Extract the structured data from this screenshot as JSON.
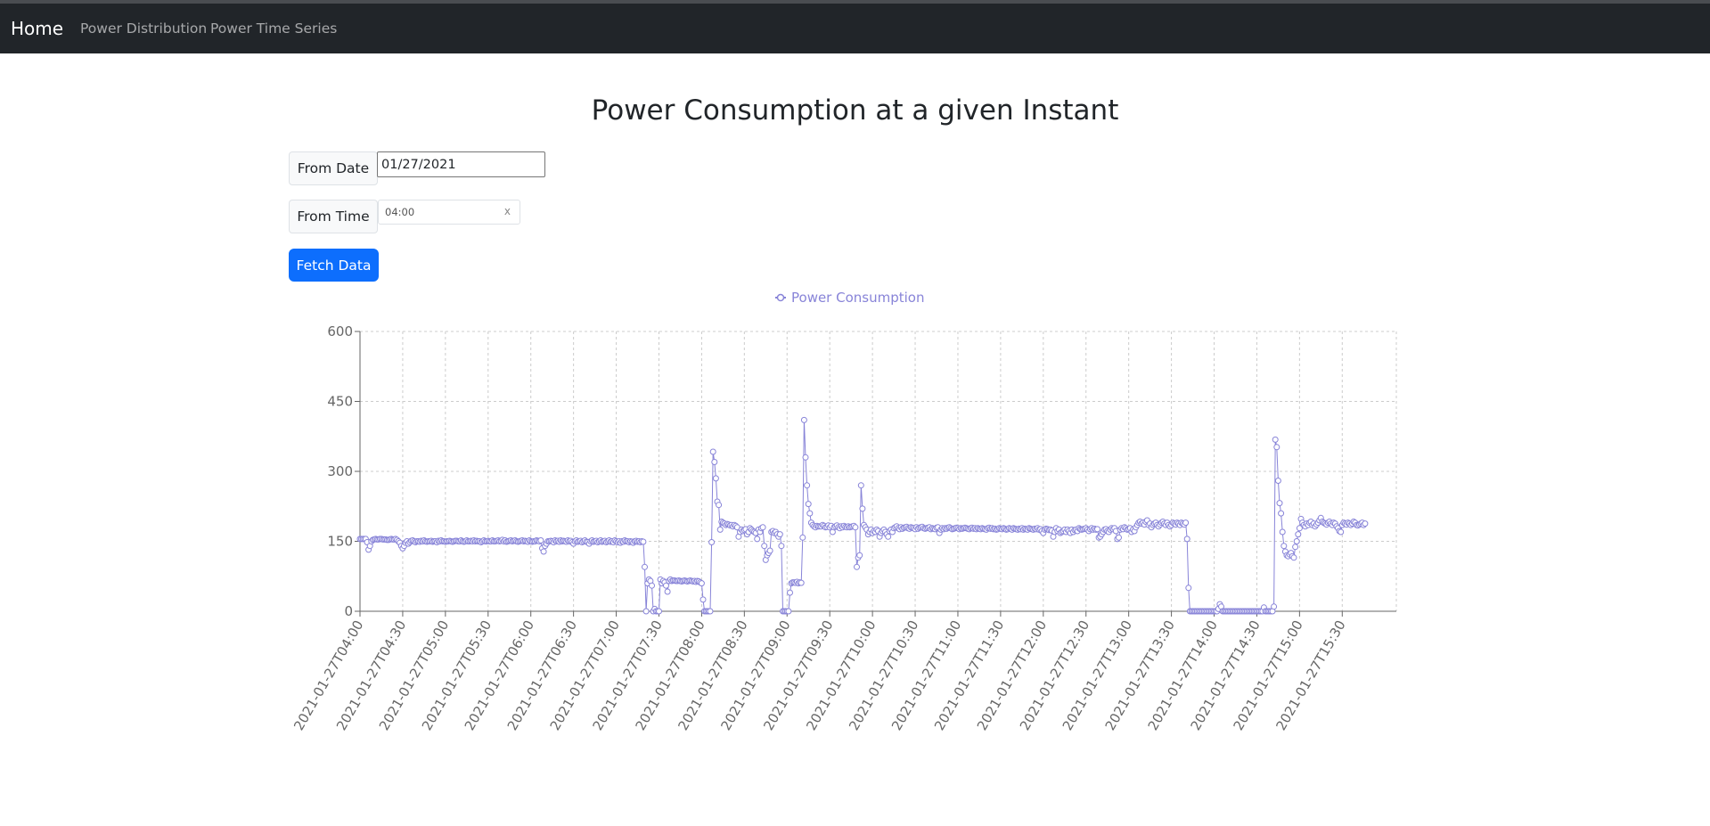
{
  "nav": {
    "brand": "Home",
    "links": [
      "Power Distribution",
      "Power Time Series"
    ]
  },
  "page": {
    "title": "Power Consumption at a given Instant"
  },
  "form": {
    "from_date_label": "From Date",
    "from_date_value": "01/27/2021",
    "from_time_label": "From Time",
    "from_time_value": "04:00",
    "clear_glyph": "x",
    "fetch_label": "Fetch Data"
  },
  "colors": {
    "series": "#8884d8",
    "axis": "#666666",
    "grid": "#cccccc",
    "button": "#0d6efd"
  },
  "chart_data": {
    "type": "line",
    "title": "",
    "legend": {
      "label": "Power Consumption",
      "position": "top"
    },
    "xlabel": "",
    "ylabel": "",
    "ylim": [
      0,
      600
    ],
    "yticks": [
      0,
      150,
      300,
      450,
      600
    ],
    "grid": true,
    "x_interval_minutes": 1,
    "x_start": "2021-01-27T04:00",
    "xtick_every": 30,
    "xtick_labels": [
      "2021-01-27T04:00",
      "2021-01-27T04:30",
      "2021-01-27T05:00",
      "2021-01-27T05:30",
      "2021-01-27T06:00",
      "2021-01-27T06:30",
      "2021-01-27T07:00",
      "2021-01-27T07:30",
      "2021-01-27T08:00",
      "2021-01-27T08:30",
      "2021-01-27T09:00",
      "2021-01-27T09:30",
      "2021-01-27T10:00",
      "2021-01-27T10:30",
      "2021-01-27T11:00",
      "2021-01-27T11:30",
      "2021-01-27T12:00",
      "2021-01-27T12:30",
      "2021-01-27T13:00",
      "2021-01-27T13:30",
      "2021-01-27T14:00",
      "2021-01-27T14:30",
      "2021-01-27T15:00",
      "2021-01-27T15:30"
    ],
    "series": [
      {
        "name": "Power Consumption",
        "values": [
          155,
          155,
          155,
          155,
          155,
          148,
          132,
          140,
          150,
          153,
          154,
          155,
          154,
          154,
          155,
          155,
          154,
          154,
          154,
          153,
          153,
          154,
          155,
          154,
          154,
          155,
          153,
          150,
          147,
          140,
          135,
          140,
          147,
          150,
          145,
          148,
          151,
          152,
          150,
          148,
          150,
          150,
          149,
          151,
          150,
          152,
          150,
          149,
          150,
          150,
          151,
          149,
          150,
          150,
          148,
          151,
          150,
          152,
          150,
          150,
          149,
          150,
          150,
          151,
          150,
          149,
          150,
          151,
          151,
          150,
          150,
          152,
          150,
          149,
          150,
          152,
          150,
          150,
          151,
          150,
          152,
          150,
          151,
          150,
          150,
          148,
          150,
          152,
          150,
          150,
          151,
          150,
          150,
          152,
          150,
          150,
          151,
          152,
          150,
          151,
          153,
          150,
          152,
          149,
          150,
          151,
          152,
          150,
          151,
          152,
          150,
          149,
          150,
          151,
          152,
          150,
          151,
          150,
          149,
          152,
          150,
          149,
          150,
          150,
          152,
          151,
          150,
          152,
          135,
          128,
          140,
          145,
          150,
          150,
          151,
          150,
          148,
          152,
          150,
          151,
          149,
          152,
          150,
          151,
          150,
          149,
          152,
          150,
          151,
          148,
          145,
          150,
          152,
          149,
          150,
          151,
          148,
          150,
          152,
          149,
          148,
          145,
          150,
          152,
          149,
          150,
          151,
          148,
          150,
          152,
          149,
          150,
          151,
          148,
          150,
          152,
          149,
          150,
          148,
          152,
          150,
          148,
          150,
          147,
          150,
          149,
          152,
          150,
          150,
          148,
          150,
          149,
          147,
          150,
          151,
          149,
          150,
          148,
          150,
          149,
          95,
          0,
          60,
          68,
          65,
          55,
          0,
          5,
          0,
          0,
          0,
          68,
          60,
          65,
          62,
          55,
          42,
          65,
          68,
          65,
          66,
          66,
          65,
          65,
          66,
          65,
          64,
          65,
          66,
          65,
          64,
          65,
          66,
          65,
          64,
          65,
          63,
          65,
          64,
          62,
          60,
          25,
          0,
          0,
          0,
          0,
          0,
          148,
          342,
          320,
          285,
          235,
          228,
          175,
          192,
          190,
          188,
          185,
          187,
          186,
          184,
          185,
          182,
          185,
          183,
          180,
          160,
          170,
          175,
          172,
          174,
          176,
          165,
          170,
          178,
          175,
          172,
          170,
          168,
          155,
          175,
          170,
          178,
          180,
          140,
          110,
          120,
          125,
          130,
          170,
          172,
          168,
          170,
          165,
          160,
          165,
          140,
          0,
          0,
          0,
          0,
          0,
          40,
          60,
          62,
          62,
          61,
          63,
          60,
          62,
          61,
          158,
          410,
          330,
          270,
          230,
          210,
          190,
          185,
          182,
          180,
          183,
          182,
          182,
          182,
          185,
          183,
          180,
          181,
          184,
          180,
          183,
          170,
          180,
          182,
          184,
          180,
          178,
          182,
          180,
          183,
          181,
          180,
          182,
          180,
          181,
          182,
          183,
          180,
          95,
          115,
          120,
          270,
          220,
          185,
          180,
          175,
          165,
          170,
          175,
          168,
          172,
          170,
          175,
          172,
          160,
          168,
          172,
          175,
          170,
          165,
          160,
          172,
          175,
          170,
          178,
          180,
          182,
          178,
          176,
          180,
          177,
          179,
          180,
          181,
          178,
          177,
          180,
          179,
          178,
          176,
          180,
          177,
          179,
          180,
          181,
          178,
          177,
          178,
          179,
          180,
          176,
          178,
          177,
          176,
          179,
          180,
          168,
          175,
          178,
          176,
          178,
          177,
          179,
          180,
          178,
          176,
          177,
          178,
          179,
          178,
          176,
          178,
          177,
          178,
          179,
          178,
          177,
          176,
          178,
          179,
          177,
          178,
          176,
          178,
          177,
          176,
          178,
          177,
          176,
          175,
          178,
          179,
          177,
          178,
          176,
          177,
          175,
          176,
          178,
          177,
          176,
          178,
          177,
          175,
          176,
          178,
          177,
          175,
          178,
          177,
          176,
          175,
          177,
          176,
          178,
          175,
          177,
          176,
          175,
          178,
          177,
          176,
          175,
          177,
          176,
          178,
          175,
          176,
          172,
          168,
          175,
          177,
          176,
          174,
          175,
          173,
          160,
          170,
          178,
          172,
          175,
          168,
          170,
          172,
          175,
          170,
          175,
          172,
          168,
          175,
          170,
          174,
          175,
          172,
          178,
          176,
          175,
          176,
          177,
          178,
          175,
          172,
          176,
          178,
          175,
          177,
          175,
          176,
          158,
          160,
          165,
          170,
          175,
          176,
          172,
          170,
          175,
          178,
          176,
          178,
          172,
          155,
          158,
          175,
          178,
          176,
          180,
          178,
          175,
          176,
          178,
          170,
          175,
          172,
          180,
          185,
          190,
          192,
          188,
          190,
          186,
          192,
          195,
          185,
          188,
          180,
          185,
          188,
          190,
          185,
          182,
          186,
          190,
          192,
          188,
          185,
          190,
          185,
          182,
          185,
          190,
          188,
          186,
          190,
          188,
          185,
          190,
          188,
          186,
          190,
          155,
          50,
          0,
          0,
          0,
          0,
          0,
          0,
          0,
          0,
          0,
          0,
          0,
          0,
          0,
          0,
          0,
          0,
          0,
          0,
          0,
          0,
          5,
          15,
          10,
          0,
          0,
          0,
          0,
          0,
          0,
          0,
          0,
          0,
          0,
          0,
          0,
          0,
          0,
          0,
          0,
          0,
          0,
          0,
          0,
          0,
          0,
          0,
          0,
          0,
          0,
          0,
          0,
          0,
          8,
          0,
          0,
          0,
          0,
          0,
          0,
          10,
          368,
          352,
          280,
          232,
          210,
          170,
          140,
          128,
          120,
          118,
          122,
          125,
          118,
          115,
          138,
          150,
          165,
          178,
          198,
          190,
          185,
          182,
          188,
          185,
          190,
          192,
          185,
          188,
          182,
          186,
          190,
          195,
          200,
          192,
          190,
          188,
          186,
          190,
          192,
          188,
          185,
          190,
          188,
          182,
          178,
          172,
          170,
          185,
          190,
          188,
          186,
          190,
          188,
          185,
          188,
          192,
          190,
          185,
          184,
          186,
          188,
          190,
          185,
          188
        ]
      }
    ]
  }
}
